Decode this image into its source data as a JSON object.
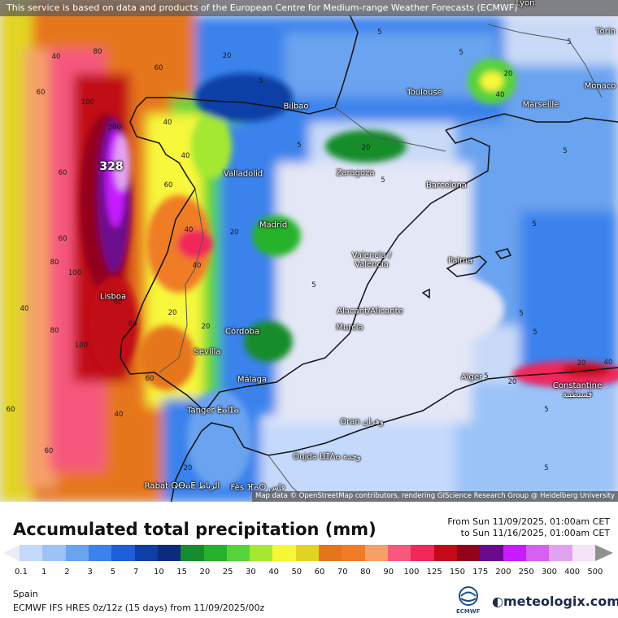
{
  "banner_text": "This service is based on data and products of the European Centre for Medium-range Weather Forecasts (ECMWF)",
  "attribution": "Map data © OpenStreetMap contributors, rendering GIScience Research Group @ Heidelberg University",
  "map": {
    "max_value": "328",
    "cities": [
      {
        "name": "Lyon",
        "key": "lyon"
      },
      {
        "name": "Torin",
        "key": "torin"
      },
      {
        "name": "Monaco",
        "key": "monaco"
      },
      {
        "name": "Marseille",
        "key": "marseille"
      },
      {
        "name": "Toulouse",
        "key": "toulouse"
      },
      {
        "name": "Bilbao",
        "key": "bilbao"
      },
      {
        "name": "Zaragoza",
        "key": "zaragoza"
      },
      {
        "name": "Barcelona",
        "key": "barcelona"
      },
      {
        "name": "Valladolid",
        "key": "valladolid"
      },
      {
        "name": "Madrid",
        "key": "madrid"
      },
      {
        "name": "Valencia / València",
        "key": "valencia"
      },
      {
        "name": "Palma",
        "key": "palma"
      },
      {
        "name": "Lisboa",
        "key": "lisboa"
      },
      {
        "name": "Alacant/Alicante",
        "key": "alicante"
      },
      {
        "name": "Murcia",
        "key": "murcia"
      },
      {
        "name": "Córdoba",
        "key": "cordoba"
      },
      {
        "name": "Sevilla",
        "key": "sevilla"
      },
      {
        "name": "Málaga",
        "key": "malaga"
      },
      {
        "name": "Alger",
        "key": "alger"
      },
      {
        "name": "Constantine قسنطينة",
        "key": "constantine"
      },
      {
        "name": "Tanger ⵟⴰⵏⵊⴰ",
        "key": "tanger"
      },
      {
        "name": "Oran وهران",
        "key": "oran"
      },
      {
        "name": "Oujda ⵡⵊⴷⴰ وجدة",
        "key": "oujda"
      },
      {
        "name": "Rabat ⵕⴱⴰⵟ الرباط",
        "key": "rabat"
      },
      {
        "name": "Fès ⴼⴰⵙ فاس",
        "key": "fes"
      }
    ],
    "contour_labels": [
      "80",
      "60",
      "40",
      "60",
      "100",
      "200",
      "60",
      "40",
      "20",
      "5",
      "5",
      "5",
      "5",
      "20",
      "40",
      "60",
      "80",
      "100",
      "80",
      "60",
      "40",
      "20",
      "20",
      "5",
      "5",
      "5",
      "40",
      "40",
      "60",
      "60",
      "80",
      "100",
      "40",
      "20",
      "20",
      "5",
      "5",
      "20",
      "20",
      "60",
      "40",
      "5",
      "20",
      "40",
      "60",
      "5",
      "5",
      "5",
      "5"
    ]
  },
  "legend": {
    "title": "Accumulated total precipitation (mm)",
    "period_from": "From Sun 11/09/2025, 01:00am CET",
    "period_to": "to Sun 11/16/2025, 01:00am CET",
    "colors": [
      "#e9e9f5",
      "#c4d9fb",
      "#9cc3f7",
      "#6aa3ef",
      "#3a82ec",
      "#1c5fd8",
      "#0d3fa6",
      "#0b2a80",
      "#168c2c",
      "#25b22c",
      "#57d33b",
      "#a4e832",
      "#f7f73a",
      "#e2d424",
      "#e6761b",
      "#f07c27",
      "#f5a068",
      "#f6597d",
      "#f2275a",
      "#c10b16",
      "#92021b",
      "#6c0a8c",
      "#c61cff",
      "#d660f0",
      "#e3a2ef",
      "#f5e3f8",
      "#dddddd"
    ],
    "ticks": [
      "0.1",
      "1",
      "2",
      "3",
      "5",
      "7",
      "10",
      "15",
      "20",
      "25",
      "30",
      "40",
      "50",
      "60",
      "70",
      "80",
      "90",
      "100",
      "125",
      "150",
      "175",
      "200",
      "250",
      "300",
      "400",
      "500"
    ],
    "region": "Spain",
    "model": "ECMWF IFS HRES 0z/12z (15 days) from  11/09/2025/00z",
    "ecmwf_label": "ECMWF",
    "brand": "meteologix.com"
  }
}
